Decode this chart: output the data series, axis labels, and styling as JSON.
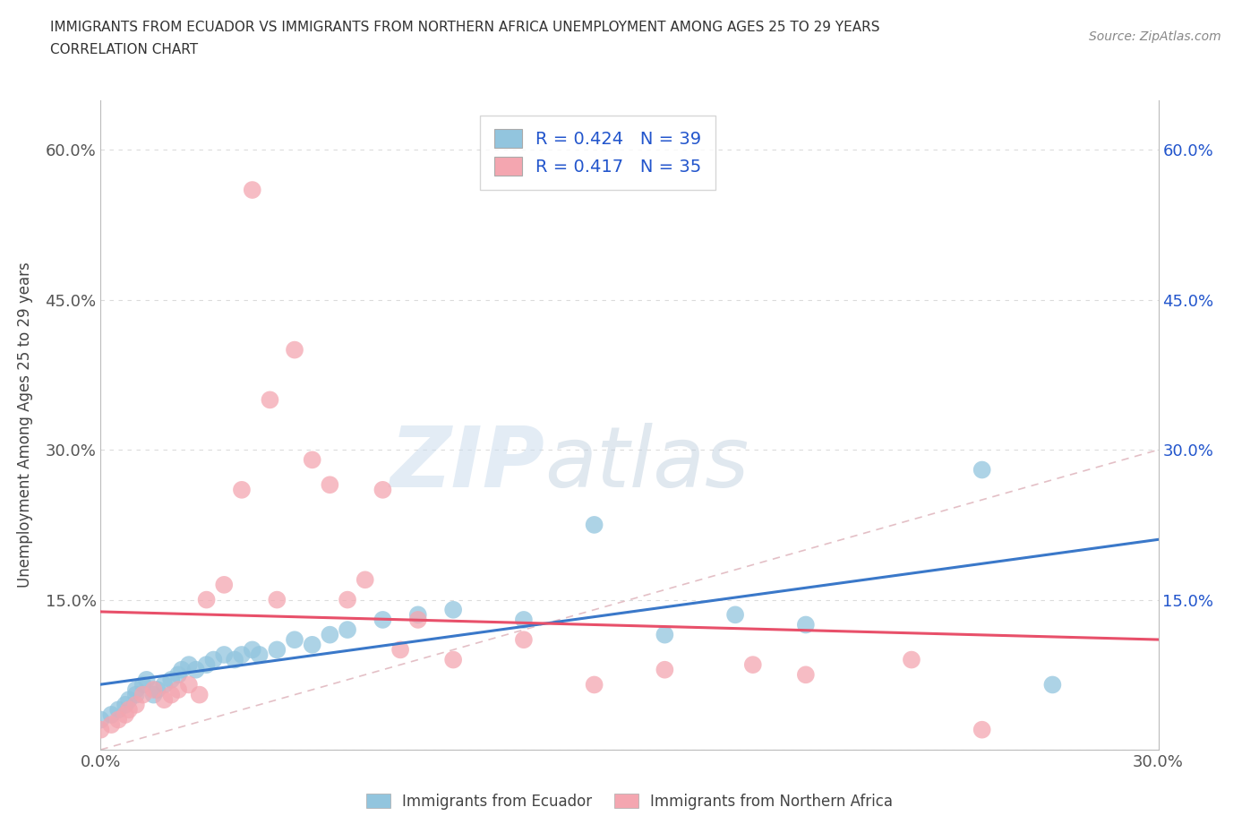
{
  "title_line1": "IMMIGRANTS FROM ECUADOR VS IMMIGRANTS FROM NORTHERN AFRICA UNEMPLOYMENT AMONG AGES 25 TO 29 YEARS",
  "title_line2": "CORRELATION CHART",
  "source": "Source: ZipAtlas.com",
  "ylabel": "Unemployment Among Ages 25 to 29 years",
  "legend_ecuador_R": "0.424",
  "legend_ecuador_N": "39",
  "legend_north_africa_R": "0.417",
  "legend_north_africa_N": "35",
  "watermark_zip": "ZIP",
  "watermark_atlas": "atlas",
  "color_ecuador": "#92C5DE",
  "color_north_africa": "#F4A6B0",
  "color_line_ecuador": "#3A78C9",
  "color_line_north_africa": "#E8506A",
  "color_diagonal": "#DDB0B8",
  "color_text_blue": "#2255CC",
  "color_text_dark": "#333333",
  "color_grid": "#CCCCCC",
  "color_source": "#888888",
  "ecuador_x": [
    0.0,
    0.003,
    0.005,
    0.007,
    0.008,
    0.01,
    0.01,
    0.012,
    0.013,
    0.015,
    0.016,
    0.018,
    0.02,
    0.022,
    0.023,
    0.025,
    0.027,
    0.03,
    0.032,
    0.035,
    0.038,
    0.04,
    0.043,
    0.045,
    0.05,
    0.055,
    0.06,
    0.065,
    0.07,
    0.08,
    0.09,
    0.1,
    0.12,
    0.14,
    0.16,
    0.18,
    0.2,
    0.25,
    0.27
  ],
  "ecuador_y": [
    0.03,
    0.035,
    0.04,
    0.045,
    0.05,
    0.055,
    0.06,
    0.065,
    0.07,
    0.055,
    0.06,
    0.065,
    0.07,
    0.075,
    0.08,
    0.085,
    0.08,
    0.085,
    0.09,
    0.095,
    0.09,
    0.095,
    0.1,
    0.095,
    0.1,
    0.11,
    0.105,
    0.115,
    0.12,
    0.13,
    0.135,
    0.14,
    0.13,
    0.225,
    0.115,
    0.135,
    0.125,
    0.28,
    0.065
  ],
  "north_africa_x": [
    0.0,
    0.003,
    0.005,
    0.007,
    0.008,
    0.01,
    0.012,
    0.015,
    0.018,
    0.02,
    0.022,
    0.025,
    0.028,
    0.03,
    0.035,
    0.04,
    0.043,
    0.048,
    0.05,
    0.055,
    0.06,
    0.065,
    0.07,
    0.075,
    0.08,
    0.085,
    0.09,
    0.1,
    0.12,
    0.14,
    0.16,
    0.185,
    0.2,
    0.23,
    0.25
  ],
  "north_africa_y": [
    0.02,
    0.025,
    0.03,
    0.035,
    0.04,
    0.045,
    0.055,
    0.06,
    0.05,
    0.055,
    0.06,
    0.065,
    0.055,
    0.15,
    0.165,
    0.26,
    0.56,
    0.35,
    0.15,
    0.4,
    0.29,
    0.265,
    0.15,
    0.17,
    0.26,
    0.1,
    0.13,
    0.09,
    0.11,
    0.065,
    0.08,
    0.085,
    0.075,
    0.09,
    0.02
  ],
  "xlim": [
    0.0,
    0.3
  ],
  "ylim": [
    0.0,
    0.65
  ],
  "x_ticks": [
    0.0,
    0.1,
    0.2,
    0.3
  ],
  "x_tick_labels": [
    "0.0%",
    "",
    "",
    "30.0%"
  ],
  "y_ticks": [
    0.0,
    0.15,
    0.3,
    0.45,
    0.6
  ],
  "y_tick_labels_left": [
    "",
    "15.0%",
    "30.0%",
    "45.0%",
    "60.0%"
  ],
  "y_tick_labels_right": [
    "",
    "15.0%",
    "30.0%",
    "45.0%",
    "60.0%"
  ]
}
